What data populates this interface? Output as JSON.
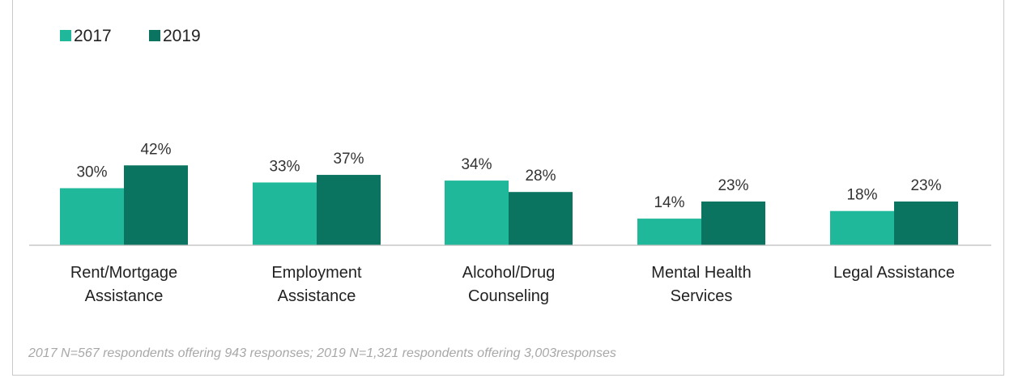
{
  "colors": {
    "series_2017": "#1fb89a",
    "series_2019": "#0a7460",
    "axis": "#bdbdbd"
  },
  "chart_data": {
    "type": "bar",
    "categories": [
      [
        "Rent/Mortgage",
        "Assistance"
      ],
      [
        "Employment",
        "Assistance"
      ],
      [
        "Alcohol/Drug",
        "Counseling"
      ],
      [
        "Mental Health",
        "Services"
      ],
      [
        "Legal Assistance"
      ]
    ],
    "series": [
      {
        "name": "2017",
        "values": [
          30,
          33,
          34,
          14,
          18
        ]
      },
      {
        "name": "2019",
        "values": [
          42,
          37,
          28,
          23,
          23
        ]
      }
    ],
    "value_suffix": "%",
    "ylim": [
      0,
      100
    ],
    "grid": false,
    "legend_position": "top-left",
    "note": "2017 N=567 respondents offering 943 responses; 2019 N=1,321 respondents offering 3,003responses"
  }
}
